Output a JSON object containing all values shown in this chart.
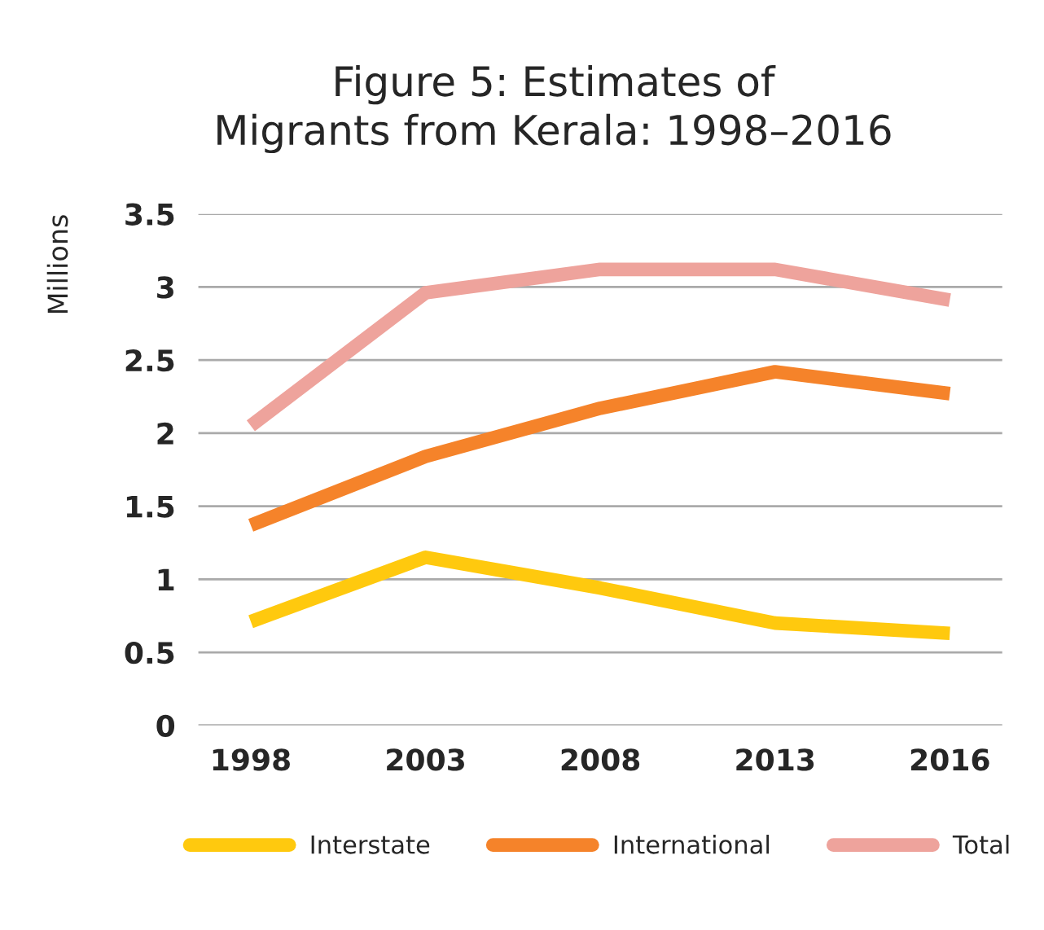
{
  "chart_data": {
    "type": "line",
    "title": "Figure 5: Estimates of\nMigrants from Kerala: 1998–2016",
    "ylabel": "Millions",
    "categories": [
      "1998",
      "2003",
      "2008",
      "2013",
      "2016"
    ],
    "series": [
      {
        "name": "Interstate",
        "color": "#ffc90e",
        "values": [
          0.71,
          1.15,
          0.94,
          0.7,
          0.63
        ]
      },
      {
        "name": "International",
        "color": "#f5832a",
        "values": [
          1.37,
          1.84,
          2.17,
          2.42,
          2.27
        ]
      },
      {
        "name": "Total",
        "color": "#eea39c",
        "values": [
          2.05,
          2.96,
          3.12,
          3.12,
          2.91
        ]
      }
    ],
    "ylim": [
      0,
      3.5
    ],
    "yticks": [
      0,
      0.5,
      1,
      1.5,
      2,
      2.5,
      3,
      3.5
    ],
    "grid": "y",
    "legend": "bottom",
    "marker": "none",
    "line_style": "solid"
  }
}
